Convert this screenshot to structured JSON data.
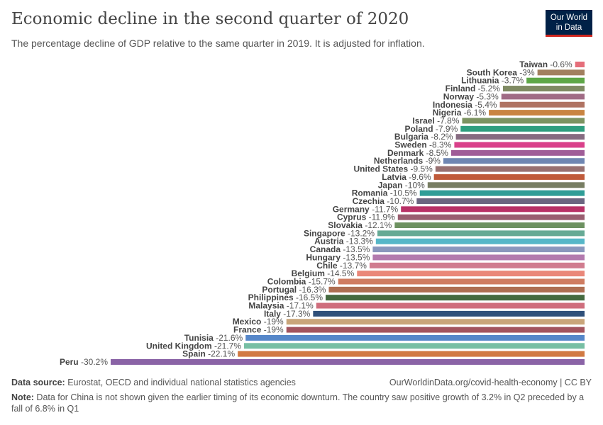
{
  "header": {
    "title": "Economic decline in the second quarter of 2020",
    "subtitle": "The percentage decline of GDP relative to the same quarter in 2019. It is adjusted for inflation.",
    "logo": "Our World in Data"
  },
  "footer": {
    "source_label": "Data source:",
    "source": " Eurostat, OECD and individual national statistics agencies",
    "url": "OurWorldinData.org/covid-health-economy | CC BY",
    "note_label": "Note:",
    "note": " Data for China is not shown given the earlier timing of its economic downturn. The country saw positive growth of 3.2% in Q2 preceded by a fall of 6.8% in Q1"
  },
  "chart_data": {
    "type": "bar",
    "orientation": "horizontal",
    "title": "Economic decline in the second quarter of 2020",
    "value_suffix": "%",
    "categories": [
      "Taiwan",
      "South Korea",
      "Lithuania",
      "Finland",
      "Norway",
      "Indonesia",
      "Nigeria",
      "Israel",
      "Poland",
      "Bulgaria",
      "Sweden",
      "Denmark",
      "Netherlands",
      "United States",
      "Latvia",
      "Japan",
      "Romania",
      "Czechia",
      "Germany",
      "Cyprus",
      "Slovakia",
      "Singapore",
      "Austria",
      "Canada",
      "Hungary",
      "Chile",
      "Belgium",
      "Colombia",
      "Portugal",
      "Philippines",
      "Malaysia",
      "Italy",
      "Mexico",
      "France",
      "Tunisia",
      "United Kingdom",
      "Spain",
      "Peru"
    ],
    "values": [
      -0.6,
      -3,
      -3.7,
      -5.2,
      -5.3,
      -5.4,
      -6.1,
      -7.8,
      -7.9,
      -8.2,
      -8.3,
      -8.5,
      -9,
      -9.5,
      -9.6,
      -10,
      -10.5,
      -10.7,
      -11.7,
      -11.9,
      -12.1,
      -13.2,
      -13.3,
      -13.5,
      -13.5,
      -13.7,
      -14.5,
      -15.7,
      -16.3,
      -16.5,
      -17.1,
      -17.3,
      -19,
      -19,
      -21.6,
      -21.7,
      -22.1,
      -30.2
    ],
    "colors": [
      "#e56e7a",
      "#a2805f",
      "#5ea747",
      "#7f8a63",
      "#a06b85",
      "#b07362",
      "#c98441",
      "#7c9361",
      "#2f9e7f",
      "#866b81",
      "#d9408a",
      "#a05d98",
      "#6f86b2",
      "#987070",
      "#c05a3a",
      "#787e63",
      "#2f9d97",
      "#6b6580",
      "#b83166",
      "#995e70",
      "#6d9160",
      "#66aa95",
      "#56b7c8",
      "#8a97bd",
      "#b37aae",
      "#d07c8f",
      "#ea8779",
      "#cf7c61",
      "#ae6e52",
      "#456a40",
      "#cf6e7d",
      "#2f507a",
      "#c9a57a",
      "#a3545e",
      "#5687c9",
      "#77bfa4",
      "#d17a43",
      "#8a63a6"
    ],
    "xlim": [
      -30.2,
      0
    ],
    "grid": false,
    "legend": "none"
  }
}
